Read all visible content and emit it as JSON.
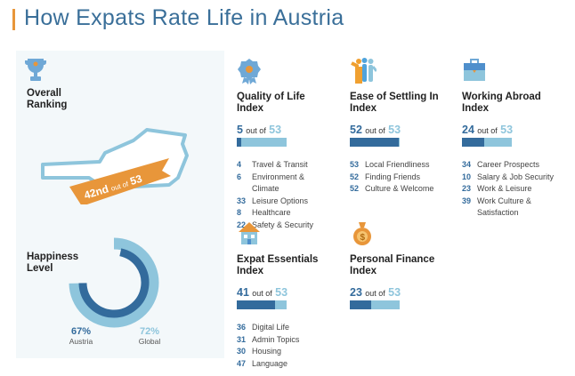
{
  "title": "How Expats Rate Life in Austria",
  "colors": {
    "accent": "#e8963a",
    "dark": "#336b9c",
    "light": "#8ec5dc"
  },
  "overall": {
    "heading_l1": "Overall",
    "heading_l2": "Ranking",
    "rank": "42nd",
    "out_of": "out of",
    "total": "53",
    "icon": "trophy-icon"
  },
  "happiness": {
    "heading_l1": "Happiness",
    "heading_l2": "Level",
    "austria_value": "67%",
    "austria_label": "Austria",
    "global_value": "72%",
    "global_label": "Global",
    "austria_pct": 67,
    "global_pct": 72
  },
  "indices": [
    {
      "t1": "Quality of Life",
      "t2": "Index",
      "icon": "badge-icon",
      "rank": "5",
      "out_of": "out of",
      "total": "53",
      "rank_num": 5,
      "items": [
        {
          "n": "4",
          "l": "Travel & Transit"
        },
        {
          "n": "6",
          "l": "Environment & Climate"
        },
        {
          "n": "33",
          "l": "Leisure Options"
        },
        {
          "n": "8",
          "l": "Healthcare"
        },
        {
          "n": "22",
          "l": "Safety & Security"
        }
      ]
    },
    {
      "t1": "Ease of Settling In",
      "t2": "Index",
      "icon": "people-icon",
      "rank": "52",
      "out_of": "out of",
      "total": "53",
      "rank_num": 52,
      "items": [
        {
          "n": "53",
          "l": "Local Friendliness"
        },
        {
          "n": "52",
          "l": "Finding Friends"
        },
        {
          "n": "52",
          "l": "Culture & Welcome"
        }
      ]
    },
    {
      "t1": "Working Abroad",
      "t2": "Index",
      "icon": "briefcase-icon",
      "rank": "24",
      "out_of": "out of",
      "total": "53",
      "rank_num": 24,
      "items": [
        {
          "n": "34",
          "l": "Career Prospects"
        },
        {
          "n": "10",
          "l": "Salary & Job Security"
        },
        {
          "n": "23",
          "l": "Work & Leisure"
        },
        {
          "n": "39",
          "l": "Work Culture & Satisfaction"
        }
      ]
    },
    {
      "t1": "Expat Essentials",
      "t2": "Index",
      "icon": "house-icon",
      "rank": "41",
      "out_of": "out of",
      "total": "53",
      "rank_num": 41,
      "items": [
        {
          "n": "36",
          "l": "Digital Life"
        },
        {
          "n": "31",
          "l": "Admin Topics"
        },
        {
          "n": "30",
          "l": "Housing"
        },
        {
          "n": "47",
          "l": "Language"
        }
      ]
    },
    {
      "t1": "Personal Finance",
      "t2": "Index",
      "icon": "money-bag-icon",
      "rank": "23",
      "out_of": "out of",
      "total": "53",
      "rank_num": 23,
      "items": []
    }
  ]
}
